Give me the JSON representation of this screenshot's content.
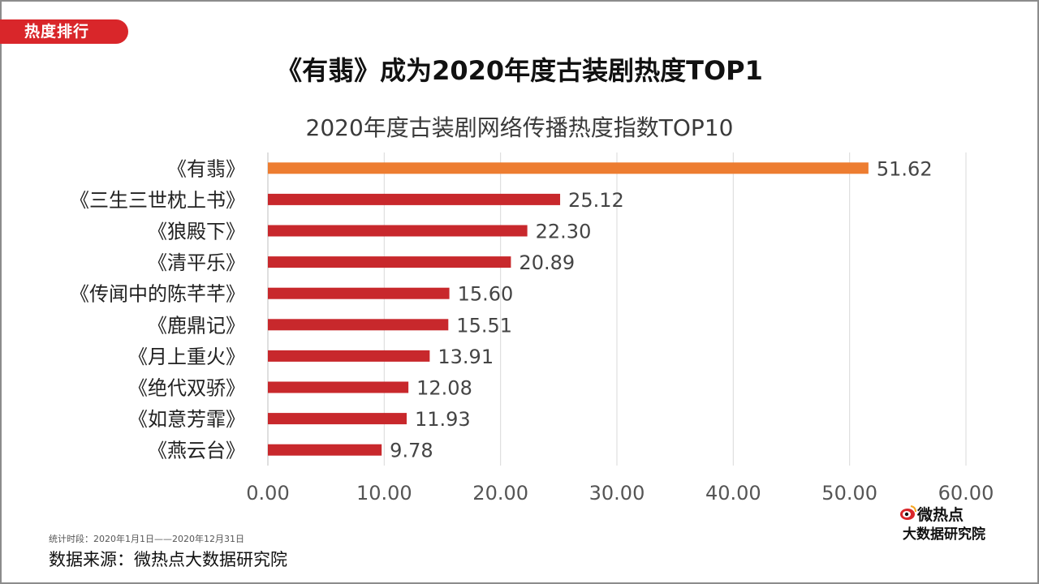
{
  "tag": "热度排行",
  "headline": "《有翡》成为2020年度古装剧热度TOP1",
  "footer": {
    "period": "统计时段：2020年1月1日——2020年12月31日",
    "source": "数据来源：微热点大数据研究院"
  },
  "logo": {
    "line1": "微热点",
    "line2": "大数据研究院",
    "icon": "weibo-eye-icon"
  },
  "colors": {
    "highlight": "#ed7d31",
    "bar": "#c8282c",
    "tag": "#d9262a"
  },
  "chart_data": {
    "type": "bar",
    "orientation": "horizontal",
    "title": "2020年度古装剧网络传播热度指数TOP10",
    "categories": [
      "《有翡》",
      "《三生三世枕上书》",
      "《狼殿下》",
      "《清平乐》",
      "《传闻中的陈芊芊》",
      "《鹿鼎记》",
      "《月上重火》",
      "《绝代双骄》",
      "《如意芳霏》",
      "《燕云台》"
    ],
    "values": [
      51.62,
      25.12,
      22.3,
      20.89,
      15.6,
      15.51,
      13.91,
      12.08,
      11.93,
      9.78
    ],
    "value_labels": [
      "51.62",
      "25.12",
      "22.30",
      "20.89",
      "15.60",
      "15.51",
      "13.91",
      "12.08",
      "11.93",
      "9.78"
    ],
    "xlim": [
      0,
      60
    ],
    "x_ticks": [
      0,
      10,
      20,
      30,
      40,
      50,
      60
    ],
    "x_tick_labels": [
      "0.00",
      "10.00",
      "20.00",
      "30.00",
      "40.00",
      "50.00",
      "60.00"
    ],
    "grid": "vertical",
    "legend": "none",
    "highlight_index": 0
  }
}
